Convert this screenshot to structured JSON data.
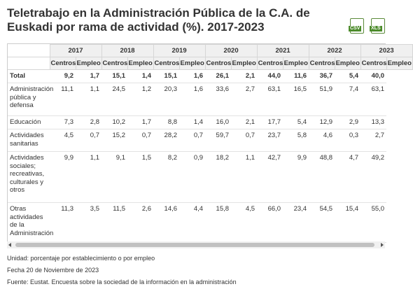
{
  "header": {
    "title": "Teletrabajo en la Administración Pública de la C.A. de Euskadi por rama de actividad (%). 2017-2023",
    "downloads": [
      "CSV",
      "XLS"
    ]
  },
  "table": {
    "years": [
      "2017",
      "2018",
      "2019",
      "2020",
      "2021",
      "2022",
      "2023"
    ],
    "measures": [
      "Centros",
      "Empleo"
    ],
    "rows": [
      {
        "label": "Total",
        "values": [
          "9,2",
          "1,7",
          "15,1",
          "1,4",
          "15,1",
          "1,6",
          "26,1",
          "2,1",
          "44,0",
          "11,6",
          "36,7",
          "5,4",
          "40,0"
        ]
      },
      {
        "label": "Administración pública y defensa",
        "values": [
          "11,1",
          "1,1",
          "24,5",
          "1,2",
          "20,3",
          "1,6",
          "33,6",
          "2,7",
          "63,1",
          "16,5",
          "51,9",
          "7,4",
          "63,1"
        ]
      },
      {
        "label": "Educación",
        "values": [
          "7,3",
          "2,8",
          "10,2",
          "1,7",
          "8,8",
          "1,4",
          "16,0",
          "2,1",
          "17,7",
          "5,4",
          "12,9",
          "2,9",
          "13,3"
        ]
      },
      {
        "label": "Actividades sanitarias",
        "values": [
          "4,5",
          "0,7",
          "15,2",
          "0,7",
          "28,2",
          "0,7",
          "59,7",
          "0,7",
          "23,7",
          "5,8",
          "4,6",
          "0,3",
          "2,7"
        ]
      },
      {
        "label": "Actividades sociales; recreativas, culturales y otros",
        "values": [
          "9,9",
          "1,1",
          "9,1",
          "1,5",
          "8,2",
          "0,9",
          "18,2",
          "1,1",
          "42,7",
          "9,9",
          "48,8",
          "4,7",
          "49,2"
        ]
      },
      {
        "label": "Otras actividades de la Administración",
        "values": [
          "11,3",
          "3,5",
          "11,5",
          "2,6",
          "14,6",
          "4,4",
          "15,8",
          "4,5",
          "66,0",
          "23,4",
          "54,5",
          "15,4",
          "55,0"
        ]
      }
    ]
  },
  "footer": {
    "unit": "Unidad: porcentaje por establecimiento o por empleo",
    "date": "Fecha 20 de Noviembre de 2023",
    "source": "Fuente: Eustat. Encuesta sobre la sociedad de la información en la administración"
  }
}
